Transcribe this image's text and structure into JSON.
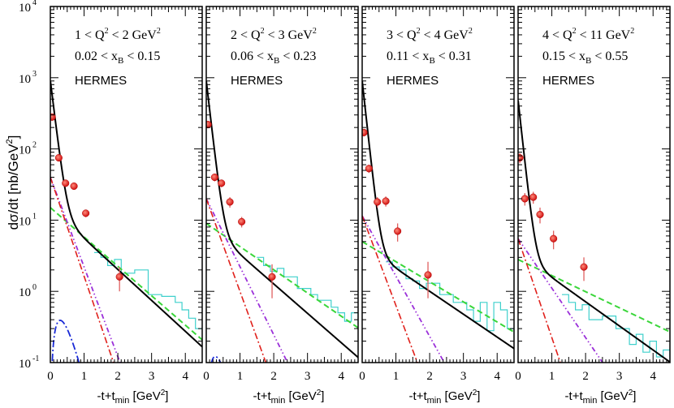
{
  "chart_data": {
    "type": "line",
    "ylabel": "dσ/dt [nb/GeV²]",
    "xlabel": "-t+t_min [GeV²]",
    "y_scale": "log",
    "ylim": [
      0.1,
      10000
    ],
    "xlim": [
      0,
      4.5
    ],
    "y_ticks": [
      {
        "value": 0.1,
        "base": "10",
        "exp": "-1"
      },
      {
        "value": 1,
        "base": "10",
        "exp": "0"
      },
      {
        "value": 10,
        "base": "10",
        "exp": "1"
      },
      {
        "value": 100,
        "base": "10",
        "exp": "2"
      },
      {
        "value": 1000,
        "base": "10",
        "exp": "3"
      },
      {
        "value": 10000,
        "base": "10",
        "exp": "4"
      }
    ],
    "x_ticks": [
      0,
      1,
      2,
      3,
      4
    ],
    "panels": [
      {
        "q2_label": "1 < Q² < 2 GeV²",
        "xb_label": "0.02 < x_B < 0.15",
        "experiment": "HERMES",
        "points": [
          {
            "x": 0.05,
            "y": 280,
            "err": 25
          },
          {
            "x": 0.25,
            "y": 75,
            "err": 8
          },
          {
            "x": 0.45,
            "y": 33,
            "err": 3
          },
          {
            "x": 0.7,
            "y": 30,
            "err": 3
          },
          {
            "x": 1.05,
            "y": 12.5,
            "err": 1.5
          },
          {
            "x": 2.05,
            "y": 1.6,
            "err": 0.6
          }
        ],
        "curves": {
          "total": {
            "A1": 900,
            "b1": 9,
            "A2": 15,
            "b2": 1.0
          },
          "magenta": {
            "A": 40,
            "b": 2.9
          },
          "red": {
            "A": 40,
            "b": 3.2
          },
          "green": {
            "A": 15,
            "b": 0.95
          },
          "blue": {
            "A": 14,
            "a": 1.6,
            "b": 5.5
          }
        },
        "hist": [
          [
            1.3,
            3.5
          ],
          [
            1.5,
            3.0
          ],
          [
            1.7,
            2.3
          ],
          [
            1.9,
            2.8
          ],
          [
            2.1,
            1.8
          ],
          [
            2.5,
            2.0
          ],
          [
            2.9,
            0.9
          ],
          [
            3.3,
            0.85
          ],
          [
            3.7,
            0.7
          ],
          [
            3.9,
            0.55
          ],
          [
            4.1,
            0.42
          ],
          [
            4.3,
            0.3
          ],
          [
            4.5,
            0.3
          ]
        ]
      },
      {
        "q2_label": "2 < Q² < 3 GeV²",
        "xb_label": "0.06 < x_B < 0.23",
        "experiment": "HERMES",
        "points": [
          {
            "x": 0.05,
            "y": 220,
            "err": 25
          },
          {
            "x": 0.25,
            "y": 40,
            "err": 5
          },
          {
            "x": 0.45,
            "y": 33,
            "err": 4
          },
          {
            "x": 0.7,
            "y": 18,
            "err": 3
          },
          {
            "x": 1.05,
            "y": 9.5,
            "err": 1.6
          },
          {
            "x": 1.95,
            "y": 1.6,
            "err": 0.8
          }
        ],
        "curves": {
          "total": {
            "A1": 900,
            "b1": 9.5,
            "A2": 8.5,
            "b2": 0.95
          },
          "magenta": {
            "A": 20,
            "b": 2.2
          },
          "red": {
            "A": 20,
            "b": 3.0
          },
          "green": {
            "A": 9,
            "b": 0.75
          },
          "blue": {
            "A": 5,
            "a": 1.6,
            "b": 6.0
          }
        },
        "hist": [
          [
            1.5,
            3.0
          ],
          [
            1.7,
            2.3
          ],
          [
            1.9,
            1.9
          ],
          [
            2.1,
            2.1
          ],
          [
            2.3,
            1.6
          ],
          [
            2.7,
            1.1
          ],
          [
            3.1,
            0.9
          ],
          [
            3.3,
            0.75
          ],
          [
            3.7,
            0.6
          ],
          [
            3.9,
            0.5
          ],
          [
            4.1,
            0.38
          ],
          [
            4.3,
            0.5
          ],
          [
            4.5,
            0.35
          ]
        ]
      },
      {
        "q2_label": "3 < Q² < 4 GeV²",
        "xb_label": "0.11 < x_B < 0.31",
        "experiment": "HERMES",
        "points": [
          {
            "x": 0.05,
            "y": 170,
            "err": 20
          },
          {
            "x": 0.2,
            "y": 53,
            "err": 7
          },
          {
            "x": 0.45,
            "y": 18,
            "err": 3
          },
          {
            "x": 0.7,
            "y": 18.5,
            "err": 3
          },
          {
            "x": 1.05,
            "y": 7,
            "err": 2
          },
          {
            "x": 1.95,
            "y": 1.7,
            "err": 0.9
          }
        ],
        "curves": {
          "total": {
            "A1": 900,
            "b1": 10,
            "A2": 4.4,
            "b2": 0.74
          },
          "magenta": {
            "A": 11.5,
            "b": 1.95
          },
          "red": {
            "A": 11.5,
            "b": 2.9
          },
          "green": {
            "A": 5.0,
            "b": 0.65
          },
          "blue": {
            "A": 2.8,
            "a": 1.5,
            "b": 6.0
          }
        },
        "hist": [
          [
            0.7,
            2.6
          ],
          [
            0.9,
            2.2
          ],
          [
            1.1,
            2.0
          ],
          [
            1.3,
            1.5
          ],
          [
            1.5,
            1.4
          ],
          [
            1.7,
            1.1
          ],
          [
            1.9,
            1.3
          ],
          [
            2.3,
            0.9
          ],
          [
            2.7,
            0.7
          ],
          [
            3.1,
            0.55
          ],
          [
            3.3,
            0.38
          ],
          [
            3.5,
            0.7
          ],
          [
            3.7,
            0.28
          ],
          [
            3.9,
            0.7
          ],
          [
            4.1,
            0.55
          ],
          [
            4.3,
            0.3
          ],
          [
            4.5,
            0.2
          ]
        ]
      },
      {
        "q2_label": "4 < Q² < 11 GeV²",
        "xb_label": "0.15 < x_B < 0.55",
        "experiment": "HERMES",
        "points": [
          {
            "x": 0.05,
            "y": 75,
            "err": 12
          },
          {
            "x": 0.2,
            "y": 20,
            "err": 4
          },
          {
            "x": 0.45,
            "y": 21,
            "err": 4
          },
          {
            "x": 0.65,
            "y": 12,
            "err": 3
          },
          {
            "x": 1.05,
            "y": 5.5,
            "err": 1.6
          },
          {
            "x": 1.95,
            "y": 2.2,
            "err": 0.8
          }
        ],
        "curves": {
          "total": {
            "A1": 480,
            "b1": 10,
            "A2": 3.4,
            "b2": 0.78
          },
          "magenta": {
            "A": 5.5,
            "b": 1.6
          },
          "red": {
            "A": 5.5,
            "b": 3.2
          },
          "green": {
            "A": 2.8,
            "b": 0.52
          },
          "blue": {
            "A": 1.2,
            "a": 1.5,
            "b": 6.5
          }
        },
        "hist": [
          [
            1.3,
            0.9
          ],
          [
            1.5,
            0.7
          ],
          [
            1.7,
            0.55
          ],
          [
            1.9,
            0.65
          ],
          [
            2.1,
            0.4
          ],
          [
            2.5,
            0.45
          ],
          [
            2.9,
            0.3
          ],
          [
            3.3,
            0.18
          ],
          [
            3.5,
            0.25
          ],
          [
            3.7,
            0.14
          ],
          [
            3.9,
            0.2
          ],
          [
            4.1,
            0.12
          ],
          [
            4.3,
            0.15
          ],
          [
            4.5,
            0.1
          ]
        ]
      }
    ],
    "colors": {
      "total": "#000000",
      "magenta": "#9b30d9",
      "red": "#e0201b",
      "green": "#3ad63a",
      "blue": "#1a2ad6",
      "hist": "#3fd0cc",
      "point": "#e81a1a",
      "error": "#e06060"
    }
  }
}
